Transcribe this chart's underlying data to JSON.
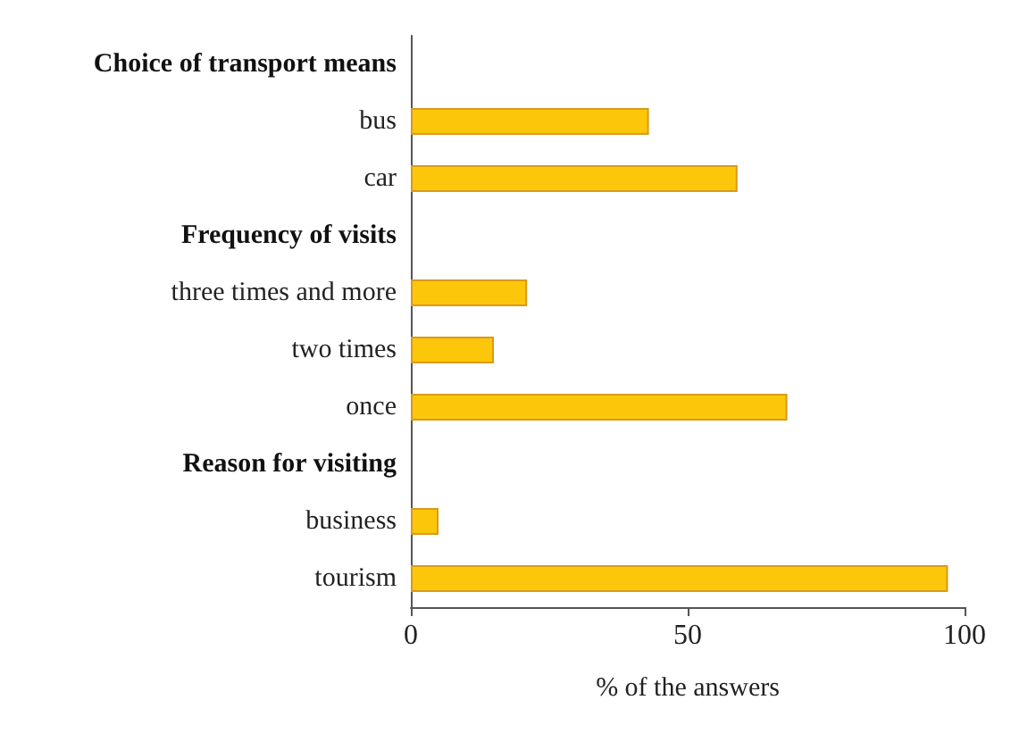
{
  "chart_data": {
    "type": "bar",
    "orientation": "horizontal",
    "xlabel": "% of the answers",
    "categories": [
      "Choice of transport means",
      "bus",
      "car",
      "Frequency of visits",
      "three times and more",
      "two times",
      "once",
      "Reason for visiting",
      "business",
      "tourism"
    ],
    "values": [
      null,
      43,
      59,
      null,
      21,
      15,
      68,
      null,
      5,
      97
    ],
    "color": "#fcc70a",
    "xlim": [
      0,
      100
    ],
    "xticks": [
      0,
      50,
      100
    ]
  }
}
